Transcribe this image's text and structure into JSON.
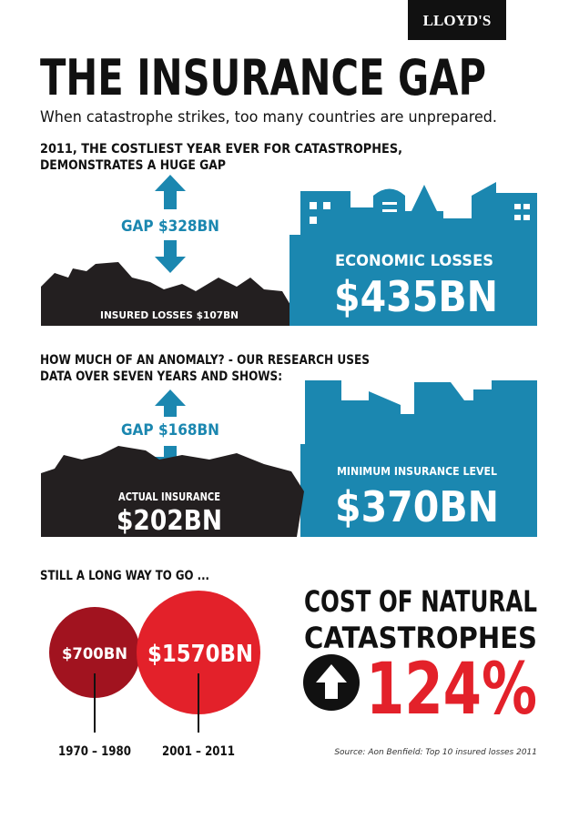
{
  "logo": "LLOYD'S",
  "header": {
    "title": "THE INSURANCE GAP",
    "subtitle": "When catastrophe strikes, too many countries are unprepared."
  },
  "section_2011": {
    "heading": [
      "2011, THE COSTLIEST YEAR EVER FOR CATASTROPHES,",
      "DEMONSTRATES A HUGE GAP"
    ],
    "gap": "GAP $328BN",
    "insured": "INSURED LOSSES $107BN",
    "economic_label": "ECONOMIC LOSSES",
    "economic_value": "$435BN"
  },
  "section_anomaly": {
    "heading": [
      "HOW MUCH OF AN ANOMALY? - OUR RESEARCH USES",
      "DATA OVER SEVEN YEARS AND SHOWS:"
    ],
    "gap": "GAP $168BN",
    "actual_label": "ACTUAL INSURANCE",
    "actual_value": "$202BN",
    "minimum_label": "MINIMUM INSURANCE LEVEL",
    "minimum_value": "$370BN"
  },
  "section_trend": {
    "heading": "STILL A LONG WAY TO GO ...",
    "circles": [
      {
        "value": "$700BN",
        "period": "1970 – 1980"
      },
      {
        "value": "$1570BN",
        "period": "2001 – 2011"
      }
    ],
    "headline": [
      "COST OF NATURAL",
      "CATASTROPHES"
    ],
    "increase": "124%",
    "source": "Source: Aon Benfield: Top 10 insured losses 2011"
  }
}
